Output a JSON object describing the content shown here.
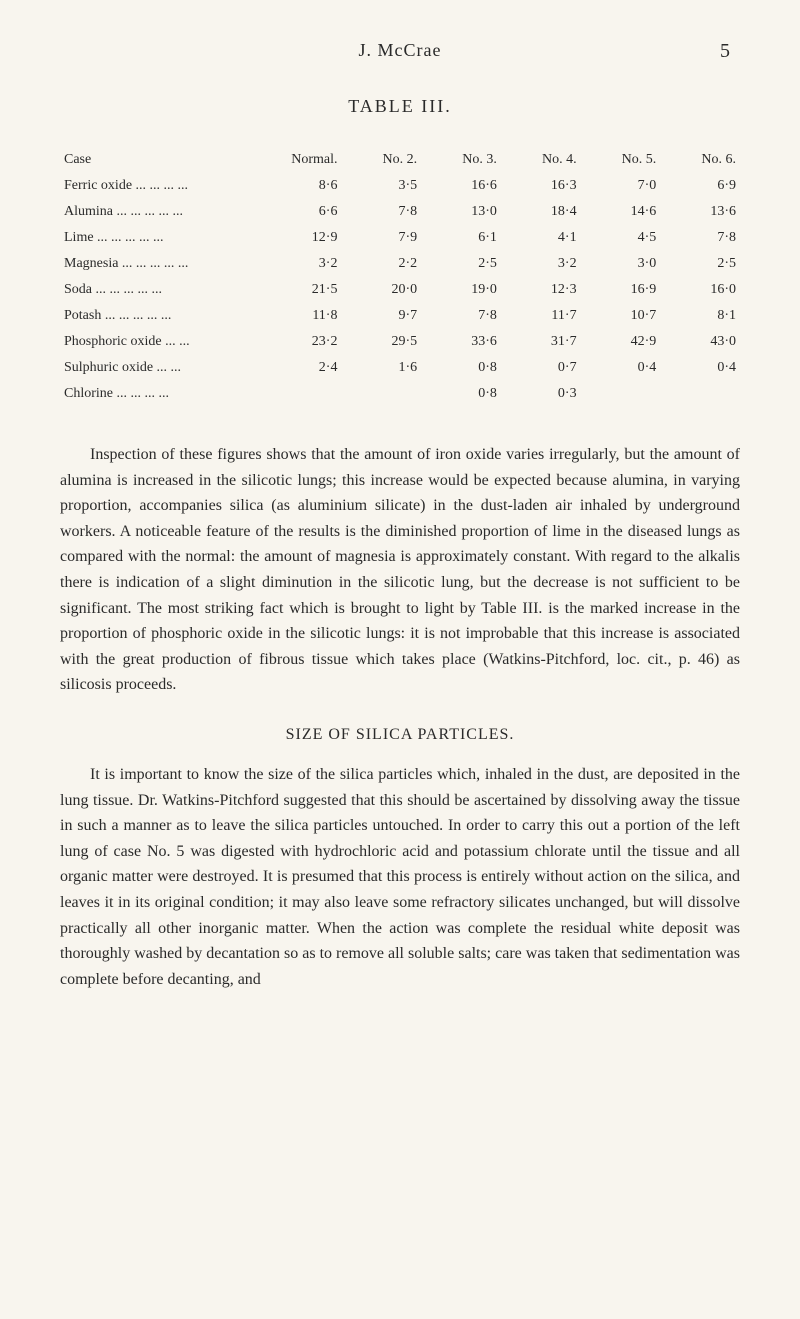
{
  "header": {
    "author": "J. McCrae",
    "page_number": "5"
  },
  "table": {
    "title": "TABLE III.",
    "columns": [
      "Case",
      "Normal.",
      "No. 2.",
      "No. 3.",
      "No. 4.",
      "No. 5.",
      "No. 6."
    ],
    "rows": [
      {
        "label": "Ferric oxide    ...    ...    ...    ...",
        "values": [
          "8·6",
          "3·5",
          "16·6",
          "16·3",
          "7·0",
          "6·9"
        ]
      },
      {
        "label": "Alumina    ...    ...    ...    ...    ...",
        "values": [
          "6·6",
          "7·8",
          "13·0",
          "18·4",
          "14·6",
          "13·6"
        ]
      },
      {
        "label": "Lime     ...    ...    ...    ...    ...",
        "values": [
          "12·9",
          "7·9",
          "6·1",
          "4·1",
          "4·5",
          "7·8"
        ]
      },
      {
        "label": "Magnesia    ...    ...    ...    ...    ...",
        "values": [
          "3·2",
          "2·2",
          "2·5",
          "3·2",
          "3·0",
          "2·5"
        ]
      },
      {
        "label": "Soda    ...    ...    ...    ...    ...",
        "values": [
          "21·5",
          "20·0",
          "19·0",
          "12·3",
          "16·9",
          "16·0"
        ]
      },
      {
        "label": "Potash    ...    ...    ...    ...    ...",
        "values": [
          "11·8",
          "9·7",
          "7·8",
          "11·7",
          "10·7",
          "8·1"
        ]
      },
      {
        "label": "Phosphoric oxide        ...    ...",
        "values": [
          "23·2",
          "29·5",
          "33·6",
          "31·7",
          "42·9",
          "43·0"
        ]
      },
      {
        "label": "Sulphuric oxide         ...    ...",
        "values": [
          "2·4",
          "1·6",
          "0·8",
          "0·7",
          "0·4",
          "0·4"
        ]
      },
      {
        "label": "Chlorine        ...    ...    ...    ...",
        "values": [
          "",
          "",
          "0·8",
          "0·3",
          "",
          ""
        ]
      }
    ]
  },
  "paragraphs": {
    "p1": "Inspection of these figures shows that the amount of iron oxide varies irregularly, but the amount of alumina is increased in the silicotic lungs; this increase would be expected because alumina, in varying proportion, accompanies silica (as aluminium silicate) in the dust-laden air inhaled by underground workers. A noticeable feature of the results is the diminished proportion of lime in the diseased lungs as compared with the normal: the amount of magnesia is approximately constant. With regard to the alkalis there is indication of a slight diminution in the silicotic lung, but the decrease is not sufficient to be significant. The most striking fact which is brought to light by Table III. is the marked increase in the proportion of phosphoric oxide in the silicotic lungs: it is not improbable that this increase is associated with the great production of fibrous tissue which takes place (Watkins-Pitchford, loc. cit., p. 46) as silicosis proceeds.",
    "section_title": "SIZE OF SILICA PARTICLES.",
    "p2": "It is important to know the size of the silica particles which, inhaled in the dust, are deposited in the lung tissue. Dr. Watkins-Pitchford suggested that this should be ascertained by dissolving away the tissue in such a manner as to leave the silica particles untouched. In order to carry this out a portion of the left lung of case No. 5 was digested with hydrochloric acid and potassium chlorate until the tissue and all organic matter were destroyed. It is presumed that this process is entirely without action on the silica, and leaves it in its original condition; it may also leave some refractory silicates unchanged, but will dissolve practically all other inorganic matter. When the action was complete the residual white deposit was thoroughly washed by decantation so as to remove all soluble salts; care was taken that sedimentation was complete before decanting, and"
  },
  "styling": {
    "background_color": "#f8f5ee",
    "text_color": "#2a2a2a",
    "body_font_size": 16,
    "table_font_size": 14,
    "title_font_size": 18
  }
}
